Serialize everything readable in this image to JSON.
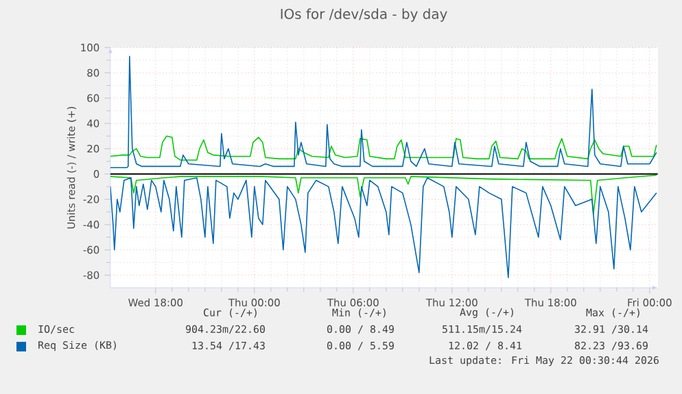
{
  "chart_data": {
    "type": "line",
    "title": "IOs for /dev/sda - by day",
    "ylabel": "Units read (-) / write (+)",
    "xlim": [
      "2026-05-20T15:15",
      "2026-05-22T00:30"
    ],
    "ylim": [
      -90,
      100
    ],
    "xticks": [
      {
        "value": "2026-05-20T18:00",
        "label": "Wed 18:00"
      },
      {
        "value": "2026-05-21T00:00",
        "label": "Thu 00:00"
      },
      {
        "value": "2026-05-21T06:00",
        "label": "Thu 06:00"
      },
      {
        "value": "2026-05-21T12:00",
        "label": "Thu 12:00"
      },
      {
        "value": "2026-05-21T18:00",
        "label": "Thu 18:00"
      },
      {
        "value": "2026-05-22T00:00",
        "label": "Fri 00:00"
      }
    ],
    "yticks": [
      -80,
      -60,
      -40,
      -20,
      0,
      20,
      40,
      60,
      80,
      100
    ],
    "grid": true,
    "legend": "bottom",
    "marker": "none",
    "line_style": "solid",
    "ref_lines": [
      {
        "axis": "y",
        "value": 0,
        "color": "#000000"
      }
    ],
    "series": [
      {
        "name": "IO/sec",
        "color": "#00cc00",
        "x": [
          "2026-05-20T15:15",
          "2026-05-20T16:00",
          "2026-05-20T16:25",
          "2026-05-20T16:35",
          "2026-05-20T16:50",
          "2026-05-20T17:05",
          "2026-05-20T17:30",
          "2026-05-20T18:15",
          "2026-05-20T18:25",
          "2026-05-20T18:40",
          "2026-05-20T19:00",
          "2026-05-20T19:10",
          "2026-05-20T19:30",
          "2026-05-20T20:30",
          "2026-05-20T20:40",
          "2026-05-20T20:55",
          "2026-05-20T21:10",
          "2026-05-20T21:30",
          "2026-05-20T22:30",
          "2026-05-20T23:45",
          "2026-05-20T23:55",
          "2026-05-21T00:15",
          "2026-05-21T00:30",
          "2026-05-21T00:40",
          "2026-05-21T01:30",
          "2026-05-21T02:30",
          "2026-05-21T02:40",
          "2026-05-21T03:00",
          "2026-05-21T03:30",
          "2026-05-21T04:30",
          "2026-05-21T04:40",
          "2026-05-21T04:55",
          "2026-05-21T05:30",
          "2026-05-21T06:15",
          "2026-05-21T06:25",
          "2026-05-21T06:50",
          "2026-05-21T07:00",
          "2026-05-21T08:00",
          "2026-05-21T08:30",
          "2026-05-21T08:40",
          "2026-05-21T08:55",
          "2026-05-21T09:10",
          "2026-05-21T10:00",
          "2026-05-21T11:00",
          "2026-05-21T12:05",
          "2026-05-21T12:15",
          "2026-05-21T12:30",
          "2026-05-21T12:40",
          "2026-05-21T13:30",
          "2026-05-21T14:15",
          "2026-05-21T14:25",
          "2026-05-21T14:40",
          "2026-05-21T14:55",
          "2026-05-21T16:00",
          "2026-05-21T16:15",
          "2026-05-21T16:30",
          "2026-05-21T16:40",
          "2026-05-21T18:15",
          "2026-05-21T18:25",
          "2026-05-21T18:40",
          "2026-05-21T19:00",
          "2026-05-21T20:15",
          "2026-05-21T20:25",
          "2026-05-21T20:40",
          "2026-05-21T20:55",
          "2026-05-21T21:10",
          "2026-05-21T22:15",
          "2026-05-21T22:25",
          "2026-05-21T22:45",
          "2026-05-21T22:55",
          "2026-05-22T00:15",
          "2026-05-22T00:25"
        ],
        "values": [
          14,
          15,
          15,
          18,
          20,
          14,
          13,
          13,
          25,
          30,
          29,
          14,
          11,
          11,
          20,
          27,
          17,
          15,
          14,
          14,
          25,
          29,
          25,
          13,
          12,
          12,
          20,
          17,
          14,
          13,
          22,
          15,
          13,
          14,
          28,
          27,
          14,
          12,
          12,
          22,
          27,
          13,
          13,
          13,
          13,
          28,
          27,
          13,
          12,
          12,
          22,
          26,
          13,
          12,
          20,
          18,
          12,
          12,
          20,
          28,
          14,
          12,
          20,
          27,
          20,
          16,
          14,
          22,
          22,
          14,
          14,
          23
        ]
      },
      {
        "color": "#00cc00",
        "x": [
          "2026-05-20T15:15",
          "2026-05-20T16:30",
          "2026-05-20T16:40",
          "2026-05-20T16:50",
          "2026-05-20T18:30",
          "2026-05-20T19:30",
          "2026-05-21T00:30",
          "2026-05-21T02:30",
          "2026-05-21T02:40",
          "2026-05-21T02:50",
          "2026-05-21T06:15",
          "2026-05-21T06:25",
          "2026-05-21T06:40",
          "2026-05-21T09:10",
          "2026-05-21T09:20",
          "2026-05-21T09:30",
          "2026-05-21T14:30",
          "2026-05-21T20:25",
          "2026-05-21T20:35",
          "2026-05-21T20:50",
          "2026-05-21T22:30",
          "2026-05-22T00:25"
        ],
        "values": [
          -2,
          -3,
          -15,
          -5,
          -3,
          -2,
          -2,
          -3,
          -15,
          -3,
          -3,
          -18,
          -3,
          -3,
          -8,
          -2,
          -4,
          -5,
          -32,
          -5,
          -3,
          -1
        ]
      },
      {
        "name": "Req Size (KB)",
        "color": "#0066b3",
        "x": [
          "2026-05-20T15:15",
          "2026-05-20T16:15",
          "2026-05-20T16:20",
          "2026-05-20T16:25",
          "2026-05-20T16:35",
          "2026-05-20T16:50",
          "2026-05-20T17:10",
          "2026-05-20T19:30",
          "2026-05-20T19:40",
          "2026-05-20T20:00",
          "2026-05-20T21:55",
          "2026-05-20T22:00",
          "2026-05-20T22:10",
          "2026-05-20T22:25",
          "2026-05-20T22:40",
          "2026-05-21T00:20",
          "2026-05-21T00:40",
          "2026-05-21T01:10",
          "2026-05-21T02:25",
          "2026-05-21T02:30",
          "2026-05-21T02:40",
          "2026-05-21T02:50",
          "2026-05-21T03:10",
          "2026-05-21T04:20",
          "2026-05-21T04:25",
          "2026-05-21T04:35",
          "2026-05-21T04:50",
          "2026-05-21T05:20",
          "2026-05-21T06:25",
          "2026-05-21T06:30",
          "2026-05-21T06:40",
          "2026-05-21T07:10",
          "2026-05-21T09:00",
          "2026-05-21T09:15",
          "2026-05-21T09:30",
          "2026-05-21T09:50",
          "2026-05-21T10:20",
          "2026-05-21T10:35",
          "2026-05-21T12:00",
          "2026-05-21T12:10",
          "2026-05-21T12:25",
          "2026-05-21T14:25",
          "2026-05-21T14:35",
          "2026-05-21T14:50",
          "2026-05-21T16:20",
          "2026-05-21T16:30",
          "2026-05-21T16:45",
          "2026-05-21T17:20",
          "2026-05-21T18:25",
          "2026-05-21T18:35",
          "2026-05-21T18:50",
          "2026-05-21T20:15",
          "2026-05-21T20:30",
          "2026-05-21T20:40",
          "2026-05-21T21:00",
          "2026-05-21T22:15",
          "2026-05-21T22:25",
          "2026-05-21T22:40",
          "2026-05-22T00:00",
          "2026-05-22T00:25"
        ],
        "values": [
          5,
          5,
          6,
          93,
          20,
          8,
          6,
          6,
          15,
          8,
          6,
          32,
          12,
          20,
          8,
          6,
          8,
          6,
          6,
          41,
          15,
          25,
          8,
          6,
          39,
          12,
          8,
          6,
          6,
          35,
          10,
          6,
          6,
          25,
          10,
          6,
          20,
          8,
          6,
          25,
          8,
          6,
          22,
          8,
          6,
          25,
          10,
          6,
          6,
          20,
          8,
          6,
          67,
          15,
          8,
          6,
          22,
          8,
          8,
          17
        ]
      },
      {
        "color": "#0066b3",
        "x": [
          "2026-05-20T15:15",
          "2026-05-20T15:25",
          "2026-05-20T15:30",
          "2026-05-20T15:40",
          "2026-05-20T15:50",
          "2026-05-20T16:05",
          "2026-05-20T16:30",
          "2026-05-20T16:40",
          "2026-05-20T16:50",
          "2026-05-20T17:00",
          "2026-05-20T17:15",
          "2026-05-20T17:30",
          "2026-05-20T17:45",
          "2026-05-20T18:00",
          "2026-05-20T18:20",
          "2026-05-20T18:30",
          "2026-05-20T18:50",
          "2026-05-20T19:05",
          "2026-05-20T19:15",
          "2026-05-20T19:35",
          "2026-05-20T19:45",
          "2026-05-20T20:30",
          "2026-05-20T20:45",
          "2026-05-20T21:00",
          "2026-05-20T21:10",
          "2026-05-20T21:30",
          "2026-05-20T21:40",
          "2026-05-20T22:20",
          "2026-05-20T22:30",
          "2026-05-20T22:45",
          "2026-05-20T23:00",
          "2026-05-20T23:30",
          "2026-05-20T23:50",
          "2026-05-21T00:00",
          "2026-05-21T00:15",
          "2026-05-21T00:30",
          "2026-05-21T00:40",
          "2026-05-21T01:30",
          "2026-05-21T01:45",
          "2026-05-21T02:00",
          "2026-05-21T02:30",
          "2026-05-21T02:50",
          "2026-05-21T03:05",
          "2026-05-21T03:15",
          "2026-05-21T03:45",
          "2026-05-21T04:30",
          "2026-05-21T04:50",
          "2026-05-21T05:05",
          "2026-05-21T05:20",
          "2026-05-21T06:05",
          "2026-05-21T06:20",
          "2026-05-21T06:30",
          "2026-05-21T06:50",
          "2026-05-21T07:00",
          "2026-05-21T07:30",
          "2026-05-21T08:00",
          "2026-05-21T08:10",
          "2026-05-21T08:20",
          "2026-05-21T09:00",
          "2026-05-21T09:30",
          "2026-05-21T10:00",
          "2026-05-21T10:15",
          "2026-05-21T10:30",
          "2026-05-21T11:30",
          "2026-05-21T11:50",
          "2026-05-21T12:00",
          "2026-05-21T12:15",
          "2026-05-21T13:00",
          "2026-05-21T13:25",
          "2026-05-21T13:40",
          "2026-05-21T14:15",
          "2026-05-21T15:00",
          "2026-05-21T15:25",
          "2026-05-21T15:40",
          "2026-05-21T16:30",
          "2026-05-21T17:15",
          "2026-05-21T17:30",
          "2026-05-21T18:00",
          "2026-05-21T18:35",
          "2026-05-21T18:50",
          "2026-05-21T19:30",
          "2026-05-21T20:30",
          "2026-05-21T20:45",
          "2026-05-21T21:00",
          "2026-05-21T21:30",
          "2026-05-21T21:50",
          "2026-05-21T22:05",
          "2026-05-21T22:30",
          "2026-05-21T22:50",
          "2026-05-21T23:05",
          "2026-05-21T23:30",
          "2026-05-22T00:25"
        ],
        "values": [
          -10,
          -40,
          -60,
          -20,
          -30,
          -5,
          -3,
          -43,
          -10,
          -25,
          -8,
          -28,
          -5,
          -10,
          -30,
          -5,
          -20,
          -45,
          -10,
          -50,
          -5,
          -3,
          -20,
          -50,
          -10,
          -55,
          -5,
          -10,
          -35,
          -15,
          -20,
          -5,
          -50,
          -10,
          -35,
          -40,
          -5,
          -20,
          -60,
          -10,
          -20,
          -40,
          -62,
          -15,
          -5,
          -10,
          -30,
          -55,
          -10,
          -35,
          -50,
          -10,
          -25,
          -5,
          -10,
          -30,
          -48,
          -10,
          -15,
          -40,
          -78,
          -10,
          -3,
          -10,
          -30,
          -50,
          -10,
          -20,
          -48,
          -10,
          -15,
          -20,
          -82,
          -10,
          -15,
          -50,
          -10,
          -25,
          -52,
          -10,
          -25,
          -20,
          -55,
          -10,
          -30,
          -75,
          -10,
          -35,
          -60,
          -10,
          -30,
          -15
        ]
      }
    ],
    "annotations": [
      "Cur (-/+)",
      "Min (-/+)",
      "Avg (-/+)",
      "Max (-/+)",
      "904.23m/22.60",
      "0.00 / 8.49",
      "511.15m/15.24",
      "32.91 /30.14",
      "13.54 /17.43",
      "0.00 / 5.59",
      "12.02 / 8.41",
      "82.23 /93.69",
      "Last update: Fri May 22 00:30:44 2026"
    ]
  }
}
